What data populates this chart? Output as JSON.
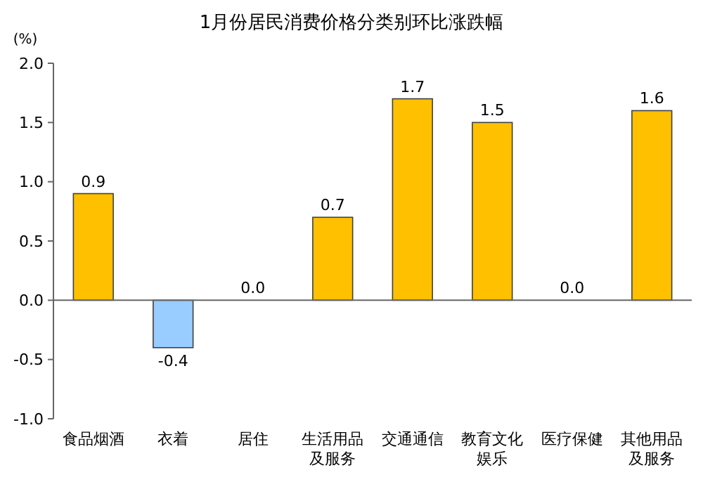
{
  "chart_data": {
    "type": "bar",
    "title": "1月份居民消费价格分类别环比涨跌幅",
    "ylabel": "(%)",
    "categories": [
      "食品烟酒",
      "衣着",
      "居住",
      "生活用品及服务",
      "交通通信",
      "教育文化娱乐",
      "医疗保健",
      "其他用品及服务"
    ],
    "values": [
      0.9,
      -0.4,
      0,
      0.7,
      1.7,
      1.5,
      0,
      1.6
    ],
    "colors": [
      "#ffc000",
      "#99ccff",
      "#ffc000",
      "#ffc000",
      "#ffc000",
      "#ffc000",
      "#ffc000",
      "#ffc000"
    ],
    "value_labels": [
      "0.9",
      "-0.4",
      "0.0",
      "0.7",
      "1.7",
      "1.5",
      "0.0",
      "1.6"
    ],
    "ylim": [
      -1,
      2
    ],
    "yticks": [
      {
        "value": -1,
        "label": "-1.0"
      },
      {
        "value": -0.5,
        "label": "-0.5"
      },
      {
        "value": 0,
        "label": "0.0"
      },
      {
        "value": 0.5,
        "label": "0.5"
      },
      {
        "value": 1,
        "label": "1.0"
      },
      {
        "value": 1.5,
        "label": "1.5"
      },
      {
        "value": 2,
        "label": "2.0"
      }
    ]
  }
}
